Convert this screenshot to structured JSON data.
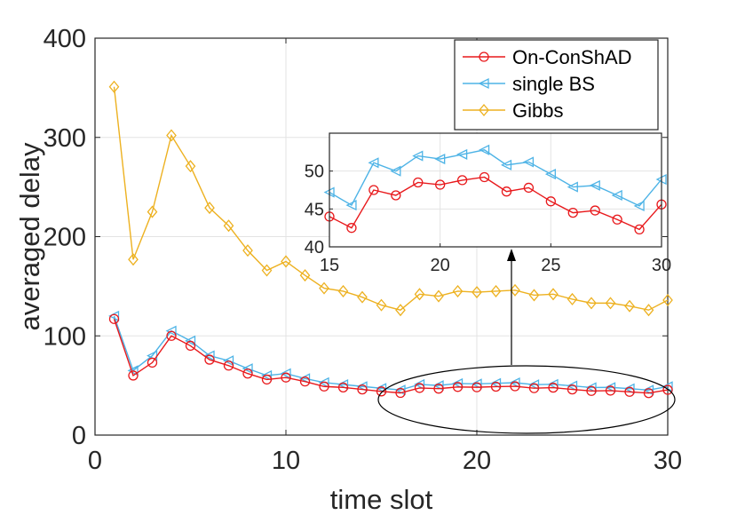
{
  "chart_data": {
    "type": "line",
    "xlabel": "time slot",
    "ylabel": "averaged delay",
    "xlim": [
      0,
      30
    ],
    "ylim": [
      0,
      400
    ],
    "xticks": [
      "0",
      "10",
      "20",
      "30"
    ],
    "yticks": [
      "0",
      "100",
      "200",
      "300",
      "400"
    ],
    "grid": true,
    "legend_position": "top-right",
    "x": [
      1,
      2,
      3,
      4,
      5,
      6,
      7,
      8,
      9,
      10,
      11,
      12,
      13,
      14,
      15,
      16,
      17,
      18,
      19,
      20,
      21,
      22,
      23,
      24,
      25,
      26,
      27,
      28,
      29,
      30
    ],
    "series": [
      {
        "name": "On-ConShAD",
        "color": "#e8191c",
        "marker": "circle",
        "values": [
          117,
          60,
          73,
          100,
          90,
          76,
          70,
          62,
          56,
          58,
          54,
          49,
          48,
          46,
          44,
          42.5,
          47.5,
          46.8,
          48.5,
          48.2,
          48.8,
          49.2,
          47.3,
          47.8,
          46,
          44.5,
          44.8,
          43.6,
          42.3,
          45.6
        ]
      },
      {
        "name": "single BS",
        "color": "#4db3e6",
        "marker": "triangle-left",
        "values": [
          120,
          65,
          80,
          105,
          95,
          80,
          75,
          67,
          60,
          62,
          57,
          53,
          51,
          49,
          47.2,
          45.5,
          51.1,
          50,
          52,
          51.6,
          52.2,
          52.8,
          50.8,
          51.2,
          49.6,
          47.9,
          48.1,
          46.8,
          45.4,
          48.9
        ]
      },
      {
        "name": "Gibbs",
        "color": "#edb120",
        "marker": "diamond",
        "values": [
          351,
          177,
          225,
          302,
          271,
          229,
          211,
          186,
          166,
          175,
          161,
          148,
          145,
          139,
          131,
          126,
          142,
          140,
          145,
          144,
          145,
          146,
          141,
          142,
          137,
          133,
          133,
          130,
          126,
          136
        ]
      }
    ],
    "inset": {
      "xlim": [
        15,
        30
      ],
      "ylim": [
        40,
        55
      ],
      "xticks": [
        "15",
        "20",
        "25",
        "30"
      ],
      "yticks": [
        "40",
        "45",
        "50"
      ],
      "grid": true
    }
  }
}
